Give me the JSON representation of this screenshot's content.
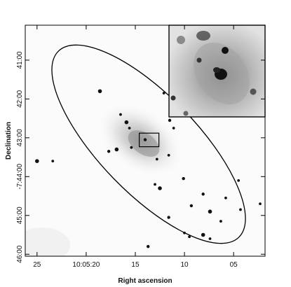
{
  "chart_data": {
    "type": "scatter",
    "title": "",
    "xlabel": "Right ascension",
    "ylabel": "Declination",
    "x_ticks": [
      "25",
      "10:05:20",
      "15",
      "10",
      "05"
    ],
    "x_tick_values_sec": [
      25,
      20,
      15,
      10,
      5
    ],
    "y_ticks": [
      "41:00",
      "42:00",
      "43:00",
      "-7:44:00",
      "45:00",
      "46:00"
    ],
    "y_tick_values_arcmin": [
      41,
      42,
      43,
      44,
      45,
      46
    ],
    "xlim_sec": [
      26.2,
      1.8
    ],
    "ylim_arcmin": [
      46.05,
      40.1
    ],
    "ellipse": {
      "center_ra_sec": 14.0,
      "center_dec_arcmin": 43.2,
      "note_shape": "tilted ellipse"
    },
    "zoom_box": {
      "ra_sec": [
        14.6,
        12.6
      ],
      "dec_arcmin": [
        42.88,
        43.23
      ]
    },
    "sources": [
      {
        "ra": 18.6,
        "dec": 41.8
      },
      {
        "ra": 12.1,
        "dec": 41.85
      },
      {
        "ra": 11.3,
        "dec": 42.3
      },
      {
        "ra": 10.1,
        "dec": 42.3
      },
      {
        "ra": 16.5,
        "dec": 42.4
      },
      {
        "ra": 15.9,
        "dec": 42.6
      },
      {
        "ra": 11.5,
        "dec": 42.55
      },
      {
        "ra": 11.1,
        "dec": 42.75
      },
      {
        "ra": 15.6,
        "dec": 42.75
      },
      {
        "ra": 17.7,
        "dec": 43.35
      },
      {
        "ra": 16.9,
        "dec": 43.3
      },
      {
        "ra": 15.4,
        "dec": 43.25
      },
      {
        "ra": 14.0,
        "dec": 43.05
      },
      {
        "ra": 12.8,
        "dec": 43.55
      },
      {
        "ra": 11.6,
        "dec": 43.45
      },
      {
        "ra": 25.0,
        "dec": 43.6
      },
      {
        "ra": 23.4,
        "dec": 43.6
      },
      {
        "ra": 13.0,
        "dec": 44.2
      },
      {
        "ra": 10.1,
        "dec": 44.05
      },
      {
        "ra": 4.5,
        "dec": 44.1
      },
      {
        "ra": 12.5,
        "dec": 44.3
      },
      {
        "ra": 8.1,
        "dec": 44.45
      },
      {
        "ra": 5.8,
        "dec": 44.55
      },
      {
        "ra": 2.3,
        "dec": 44.7
      },
      {
        "ra": 9.3,
        "dec": 44.75
      },
      {
        "ra": 7.4,
        "dec": 44.9
      },
      {
        "ra": 4.3,
        "dec": 44.85
      },
      {
        "ra": 11.6,
        "dec": 45.05
      },
      {
        "ra": 6.3,
        "dec": 45.15
      },
      {
        "ra": 10.0,
        "dec": 45.45
      },
      {
        "ra": 8.1,
        "dec": 45.5
      },
      {
        "ra": 7.4,
        "dec": 45.6
      },
      {
        "ra": 9.5,
        "dec": 45.55
      },
      {
        "ra": 13.7,
        "dec": 45.8
      }
    ]
  }
}
